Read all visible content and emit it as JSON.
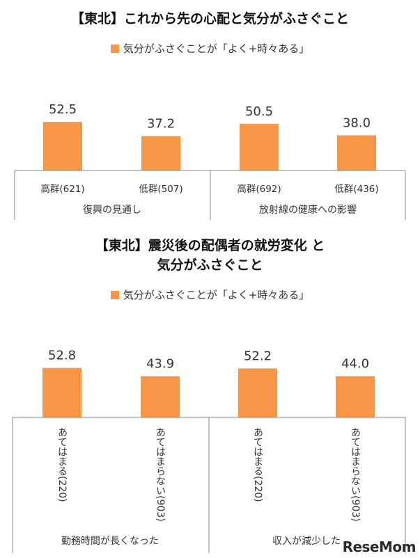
{
  "chart_data": [
    {
      "type": "bar",
      "title": "【東北】これから先の心配と気分がふさぐこと",
      "legend": "気分がふさぐことが「よく+時々ある」",
      "bar_color": "#F79646",
      "ylim": [
        0,
        100
      ],
      "categories": [
        "高群(621)",
        "低群(507)",
        "高群(692)",
        "低群(436)"
      ],
      "groups": [
        "復興の見通し",
        "放射線の健康への影響"
      ],
      "values": [
        52.5,
        37.2,
        50.5,
        38.0
      ],
      "labels": [
        "52.5",
        "37.2",
        "50.5",
        "38.0"
      ]
    },
    {
      "type": "bar",
      "title": "【東北】震災後の配偶者の就労変化 と\n気分がふさぐこと",
      "title_lines": [
        "【東北】震災後の配偶者の就労変化 と",
        "気分がふさぐこと"
      ],
      "legend": "気分がふさぐことが「よく+時々ある」",
      "bar_color": "#F79646",
      "ylim": [
        0,
        100
      ],
      "categories": [
        "あてはまる(220)",
        "あてはまらない(903)",
        "あてはまる(220)",
        "あてはまらない(903)"
      ],
      "groups": [
        "勤務時間が長くなった",
        "収入が減少した"
      ],
      "values": [
        52.8,
        43.9,
        52.2,
        44.0
      ],
      "labels": [
        "52.8",
        "43.9",
        "52.2",
        "44.0"
      ]
    }
  ],
  "brand": "ReseMom"
}
